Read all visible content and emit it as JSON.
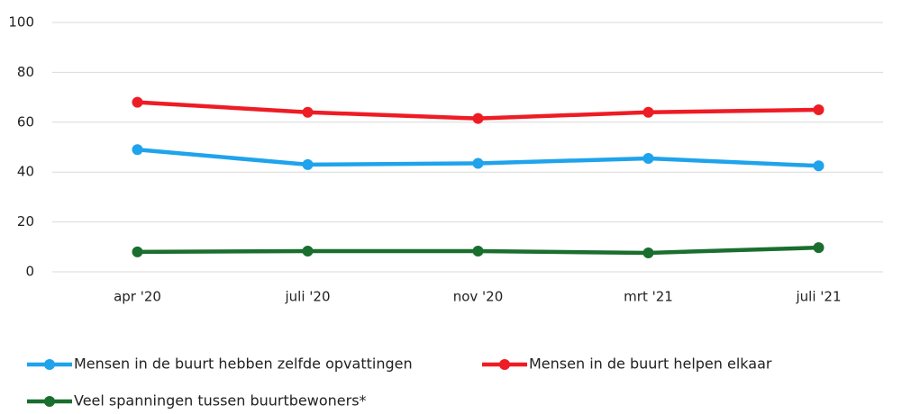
{
  "chart_data": {
    "type": "line",
    "categories": [
      "apr '20",
      "juli '20",
      "nov '20",
      "mrt '21",
      "juli '21"
    ],
    "series": [
      {
        "name": "Mensen in de buurt hebben zelfde opvattingen",
        "color": "#1fa3ec",
        "values": [
          49,
          43,
          43.5,
          45.5,
          42.5
        ]
      },
      {
        "name": "Mensen in de buurt helpen elkaar",
        "color": "#ee1c25",
        "values": [
          68,
          64,
          61.5,
          64,
          65
        ]
      },
      {
        "name": "Veel spanningen tussen buurtbewoners*",
        "color": "#1a6e2e",
        "values": [
          8,
          8.3,
          8.3,
          7.6,
          9.7
        ]
      }
    ],
    "ylim": [
      0,
      100
    ],
    "yticks": [
      0,
      20,
      40,
      60,
      80,
      100
    ],
    "grid": true,
    "legend": "bottom"
  }
}
